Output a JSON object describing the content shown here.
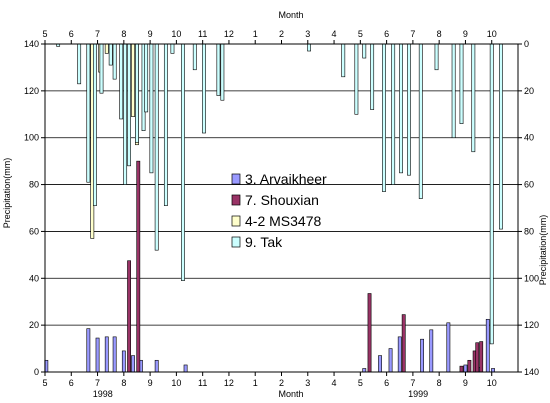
{
  "chart_data": {
    "type": "bar",
    "title": "",
    "top_axis_label": "Month",
    "bottom_axis_label": "Month",
    "left_axis_label": "Precipitation(mm)",
    "right_axis_label": "Precipitation(mm)",
    "left_ylim": [
      0,
      140
    ],
    "right_ylim": [
      0,
      140
    ],
    "right_axis_inverted": true,
    "grid": true,
    "legend_position": "center",
    "month_ticks": [
      "5",
      "6",
      "7",
      "8",
      "9",
      "10",
      "11",
      "12",
      "1",
      "2",
      "3",
      "4",
      "5",
      "6",
      "7",
      "8",
      "9",
      "10"
    ],
    "year_labels": [
      {
        "text": "1998",
        "month_index": 2.2
      },
      {
        "text": "1999",
        "month_index": 14.2
      }
    ],
    "x_unit": "month (May 1998 – Oct 1999)",
    "series": [
      {
        "name": "3. Arvaikheer",
        "color": "#9999ff",
        "axis": "left",
        "points": [
          [
            0.05,
            5
          ],
          [
            1.65,
            18.5
          ],
          [
            2.0,
            14.5
          ],
          [
            2.35,
            15
          ],
          [
            2.65,
            15
          ],
          [
            3.0,
            9
          ],
          [
            3.35,
            7
          ],
          [
            3.65,
            5
          ],
          [
            4.25,
            5
          ],
          [
            5.35,
            3
          ],
          [
            12.15,
            1.5
          ],
          [
            12.75,
            7
          ],
          [
            13.15,
            10
          ],
          [
            13.5,
            15
          ],
          [
            14.35,
            14
          ],
          [
            14.7,
            18
          ],
          [
            15.35,
            21
          ],
          [
            16.0,
            3
          ],
          [
            16.5,
            2
          ],
          [
            16.85,
            22.5
          ],
          [
            17.05,
            1.5
          ]
        ]
      },
      {
        "name": "7. Shouxian",
        "color": "#993366",
        "axis": "left",
        "points": [
          [
            3.2,
            47.5
          ],
          [
            3.55,
            90
          ],
          [
            12.35,
            33.5
          ],
          [
            13.65,
            24.5
          ],
          [
            15.85,
            2.5
          ],
          [
            16.15,
            5
          ],
          [
            16.35,
            9
          ],
          [
            16.45,
            12.5
          ],
          [
            16.6,
            13
          ]
        ]
      },
      {
        "name": "4-2 MS3478",
        "color": "#ffffcc",
        "axis": "right",
        "points": [
          [
            1.8,
            83
          ],
          [
            2.1,
            12
          ],
          [
            2.35,
            4
          ],
          [
            3.35,
            31
          ],
          [
            3.5,
            43
          ]
        ]
      },
      {
        "name": "9. Tak",
        "color": "#ccffff",
        "axis": "right",
        "points": [
          [
            0.5,
            1
          ],
          [
            1.3,
            17
          ],
          [
            1.65,
            59
          ],
          [
            1.9,
            69
          ],
          [
            2.15,
            21
          ],
          [
            2.5,
            9
          ],
          [
            2.65,
            15
          ],
          [
            2.9,
            32
          ],
          [
            3.05,
            60
          ],
          [
            3.2,
            52
          ],
          [
            3.5,
            42
          ],
          [
            3.75,
            37
          ],
          [
            3.85,
            29
          ],
          [
            4.05,
            55
          ],
          [
            4.25,
            88
          ],
          [
            4.6,
            69
          ],
          [
            4.85,
            4
          ],
          [
            5.25,
            101
          ],
          [
            5.7,
            11
          ],
          [
            6.05,
            38
          ],
          [
            6.6,
            22
          ],
          [
            6.75,
            24
          ],
          [
            10.05,
            3
          ],
          [
            11.35,
            14
          ],
          [
            11.85,
            30
          ],
          [
            12.15,
            6
          ],
          [
            12.45,
            28
          ],
          [
            12.9,
            63
          ],
          [
            13.25,
            60
          ],
          [
            13.55,
            55
          ],
          [
            13.85,
            56
          ],
          [
            14.3,
            66
          ],
          [
            14.9,
            11
          ],
          [
            15.55,
            40
          ],
          [
            15.85,
            34
          ],
          [
            16.3,
            46
          ],
          [
            17.0,
            128
          ],
          [
            17.35,
            79
          ]
        ]
      }
    ]
  }
}
